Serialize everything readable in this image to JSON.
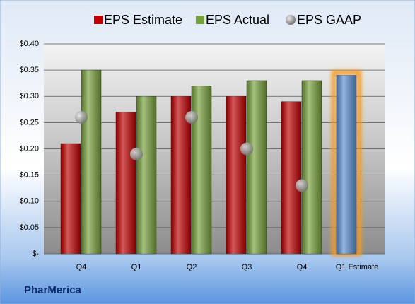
{
  "chart_data": {
    "type": "bar",
    "categories": [
      "Q4",
      "Q1",
      "Q2",
      "Q3",
      "Q4",
      "Q1 Estimate"
    ],
    "series": [
      {
        "name": "EPS Estimate",
        "color": "#c00000",
        "values": [
          0.21,
          0.27,
          0.3,
          0.3,
          0.29,
          0.34
        ],
        "colors": [
          "#c00000",
          "#c00000",
          "#c00000",
          "#c00000",
          "#c00000",
          "#5b8fd0"
        ]
      },
      {
        "name": "EPS Actual",
        "color": "#77a03a",
        "values": [
          0.35,
          0.3,
          0.32,
          0.33,
          0.33,
          null
        ]
      },
      {
        "name": "EPS GAAP",
        "color": "#9a9a9a",
        "type": "scatter",
        "values": [
          0.26,
          0.19,
          0.26,
          0.2,
          0.13,
          null
        ]
      }
    ],
    "ylim": [
      0,
      0.4
    ],
    "yticks": [
      {
        "value": 0,
        "label": "$-"
      },
      {
        "value": 0.05,
        "label": "$0.05"
      },
      {
        "value": 0.1,
        "label": "$0.10"
      },
      {
        "value": 0.15,
        "label": "$0.15"
      },
      {
        "value": 0.2,
        "label": "$0.20"
      },
      {
        "value": 0.25,
        "label": "$0.25"
      },
      {
        "value": 0.3,
        "label": "$0.30"
      },
      {
        "value": 0.35,
        "label": "$0.35"
      },
      {
        "value": 0.4,
        "label": "$0.40"
      }
    ],
    "grid": true,
    "legend": "top",
    "footer_label": "PharMerica"
  }
}
